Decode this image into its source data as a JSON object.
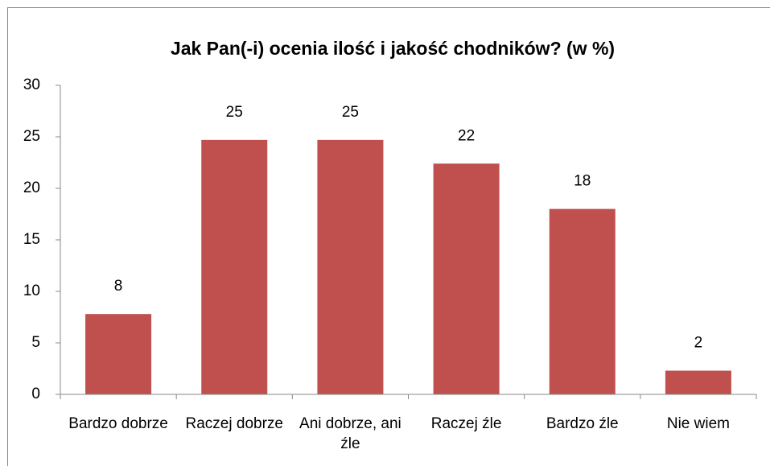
{
  "chart_data": {
    "type": "bar",
    "title": "Jak Pan(-i) ocenia ilość i jakość chodników? (w %)",
    "categories": [
      "Bardzo dobrze",
      "Raczej dobrze",
      "Ani dobrze, ani źle",
      "Raczej źle",
      "Bardzo źle",
      "Nie wiem"
    ],
    "values": [
      7.8,
      24.7,
      24.7,
      22.4,
      18,
      2.3
    ],
    "value_labels": [
      "8",
      "25",
      "25",
      "22",
      "18",
      "2"
    ],
    "color": "#c0504d",
    "ylim": [
      0,
      30
    ],
    "yticks": [
      0,
      5,
      10,
      15,
      20,
      25,
      30
    ],
    "grid": false
  }
}
